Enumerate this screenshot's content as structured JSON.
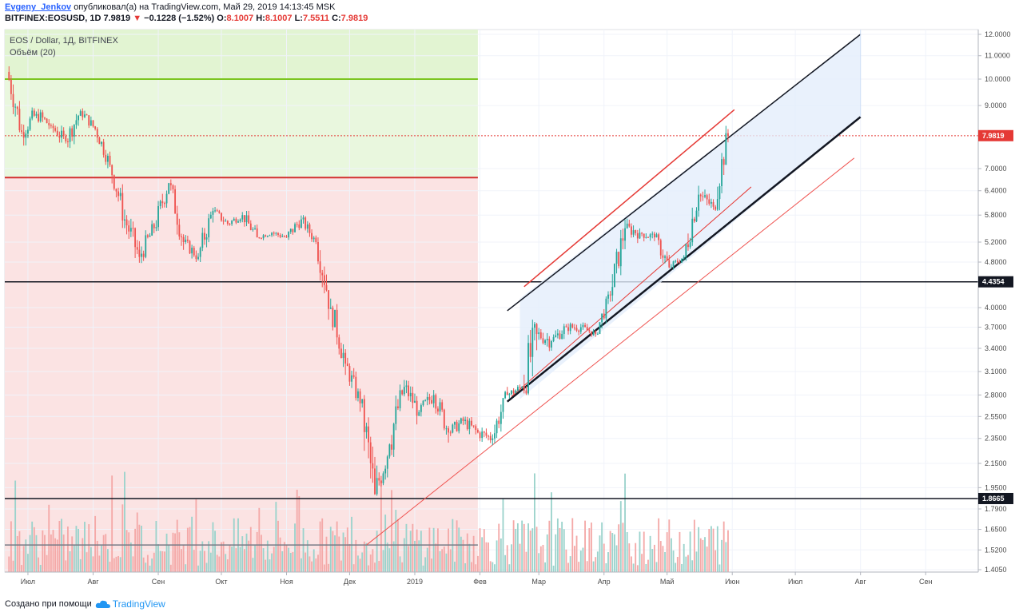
{
  "header": {
    "author": "Evgeny_Jenkov",
    "published_text": "опубликовал(а) на TradingView.com, Май 29, 2019 14:13:45 MSK",
    "symbol": "BITFINEX:EOSUSD, 1D",
    "last": "7.9819",
    "change_arrow": "▼",
    "change": "−0.1228 (−1.52%)",
    "o_label": "O:",
    "o_value": "8.1007",
    "h_label": "H:",
    "h_value": "8.1007",
    "l_label": "L:",
    "l_value": "7.5511",
    "c_label": "C:",
    "c_value": "7.9819"
  },
  "chart_title": "EOS / Dollar, 1Д, BITFINEX",
  "volume_title": "Объём (20)",
  "footer": {
    "created_with": "Создано при помощи",
    "brand": "TradingView"
  },
  "colors": {
    "up": "#26a69a",
    "down": "#ef5350",
    "channel": "#d0e0f7",
    "green_zone": "#e9f7de",
    "red_zone": "#fbe3e3"
  },
  "chart_data": {
    "type": "candlestick",
    "x_ticks": [
      "Июл",
      "Авг",
      "Сен",
      "Окт",
      "Ноя",
      "Дек",
      "2019",
      "Фев",
      "Мар",
      "Апр",
      "Май",
      "Июн",
      "Июл",
      "Авг",
      "Сен"
    ],
    "y_ticks": [
      "12.0000",
      "11.0000",
      "10.0000",
      "9.0000",
      "7.0000",
      "6.4000",
      "5.8000",
      "5.2000",
      "4.8000",
      "4.0000",
      "3.7000",
      "3.4000",
      "3.1000",
      "2.8000",
      "2.5500",
      "2.3500",
      "2.1500",
      "1.9500",
      "1.7900",
      "1.6500",
      "1.5200",
      "1.4050"
    ],
    "price_labels": [
      {
        "value": "7.9819",
        "color": "#e53935"
      },
      {
        "value": "4.4354",
        "color": "#131722"
      },
      {
        "value": "1.8665",
        "color": "#131722"
      }
    ],
    "horizontal_levels": [
      {
        "price": 10.0,
        "color": "#7cc520"
      },
      {
        "price": 6.75,
        "color": "#d32f2f"
      },
      {
        "price": 4.4354,
        "color": "#131722"
      },
      {
        "price": 1.8665,
        "color": "#131722"
      },
      {
        "price": 1.55,
        "color": "#787b86"
      }
    ],
    "channel": {
      "start": "2019-02-20",
      "end": "2019-08-01",
      "lower_start": 2.75,
      "lower_end": 8.6,
      "upper_start": 4.15,
      "upper_end": 12.0
    },
    "support_line": {
      "start": "2018-12-09",
      "start_price": 1.55,
      "end": "2019-07-29",
      "end_price": 7.3
    },
    "candles_weekly": [
      [
        "2018-06-22",
        10.3,
        10.8,
        8.0,
        8.1
      ],
      [
        "2018-06-29",
        8.1,
        9.0,
        7.3,
        8.7
      ],
      [
        "2018-07-06",
        8.7,
        9.3,
        8.0,
        8.3
      ],
      [
        "2018-07-13",
        8.3,
        8.6,
        7.4,
        7.8
      ],
      [
        "2018-07-20",
        7.8,
        9.2,
        7.6,
        8.8
      ],
      [
        "2018-07-27",
        8.8,
        8.9,
        7.9,
        8.2
      ],
      [
        "2018-08-03",
        8.2,
        8.3,
        7.0,
        7.1
      ],
      [
        "2018-08-10",
        7.1,
        7.2,
        5.5,
        5.7
      ],
      [
        "2018-08-17",
        5.7,
        5.8,
        4.3,
        4.9
      ],
      [
        "2018-08-24",
        4.9,
        5.8,
        4.7,
        5.5
      ],
      [
        "2018-08-31",
        5.5,
        6.8,
        5.4,
        6.6
      ],
      [
        "2018-09-07",
        6.6,
        6.7,
        5.0,
        5.2
      ],
      [
        "2018-09-14",
        5.2,
        5.5,
        4.8,
        4.9
      ],
      [
        "2018-09-21",
        4.9,
        6.1,
        4.8,
        5.9
      ],
      [
        "2018-09-28",
        5.9,
        6.0,
        5.4,
        5.6
      ],
      [
        "2018-10-05",
        5.6,
        5.9,
        5.4,
        5.8
      ],
      [
        "2018-10-12",
        5.8,
        5.9,
        5.1,
        5.3
      ],
      [
        "2018-10-19",
        5.3,
        5.5,
        5.2,
        5.4
      ],
      [
        "2018-10-26",
        5.4,
        5.5,
        5.1,
        5.3
      ],
      [
        "2018-11-02",
        5.3,
        5.9,
        5.1,
        5.7
      ],
      [
        "2018-11-09",
        5.7,
        5.8,
        5.1,
        5.2
      ],
      [
        "2018-11-16",
        5.2,
        5.3,
        3.8,
        4.0
      ],
      [
        "2018-11-23",
        4.0,
        4.1,
        3.0,
        3.2
      ],
      [
        "2018-11-30",
        3.2,
        3.3,
        2.6,
        2.7
      ],
      [
        "2018-12-07",
        2.7,
        2.8,
        1.75,
        1.9
      ],
      [
        "2018-12-14",
        1.9,
        2.5,
        1.8,
        2.3
      ],
      [
        "2018-12-21",
        2.3,
        3.1,
        2.2,
        2.9
      ],
      [
        "2018-12-28",
        2.9,
        3.0,
        2.4,
        2.6
      ],
      [
        "2019-01-04",
        2.6,
        3.0,
        2.5,
        2.8
      ],
      [
        "2019-01-11",
        2.8,
        2.9,
        2.3,
        2.4
      ],
      [
        "2019-01-18",
        2.4,
        2.6,
        2.3,
        2.5
      ],
      [
        "2019-01-25",
        2.5,
        2.6,
        2.3,
        2.4
      ],
      [
        "2019-02-01",
        2.4,
        2.5,
        2.2,
        2.35
      ],
      [
        "2019-02-08",
        2.35,
        2.9,
        2.3,
        2.8
      ],
      [
        "2019-02-15",
        2.8,
        3.0,
        2.7,
        2.9
      ],
      [
        "2019-02-22",
        2.9,
        4.5,
        2.8,
        3.6
      ],
      [
        "2019-03-01",
        3.6,
        3.9,
        3.3,
        3.5
      ],
      [
        "2019-03-08",
        3.5,
        3.9,
        3.4,
        3.7
      ],
      [
        "2019-03-15",
        3.7,
        3.9,
        3.5,
        3.7
      ],
      [
        "2019-03-22",
        3.7,
        3.8,
        3.5,
        3.6
      ],
      [
        "2019-03-29",
        3.6,
        4.3,
        3.6,
        4.2
      ],
      [
        "2019-04-05",
        4.2,
        5.7,
        4.1,
        5.5
      ],
      [
        "2019-04-12",
        5.5,
        5.9,
        5.1,
        5.4
      ],
      [
        "2019-04-19",
        5.4,
        5.6,
        5.0,
        5.3
      ],
      [
        "2019-04-26",
        5.3,
        5.4,
        4.5,
        4.7
      ],
      [
        "2019-05-03",
        4.7,
        5.0,
        4.6,
        4.9
      ],
      [
        "2019-05-10",
        4.9,
        6.6,
        4.8,
        6.3
      ],
      [
        "2019-05-17",
        6.3,
        6.7,
        5.7,
        6.0
      ],
      [
        "2019-05-24",
        6.0,
        8.3,
        5.9,
        7.98
      ]
    ]
  }
}
